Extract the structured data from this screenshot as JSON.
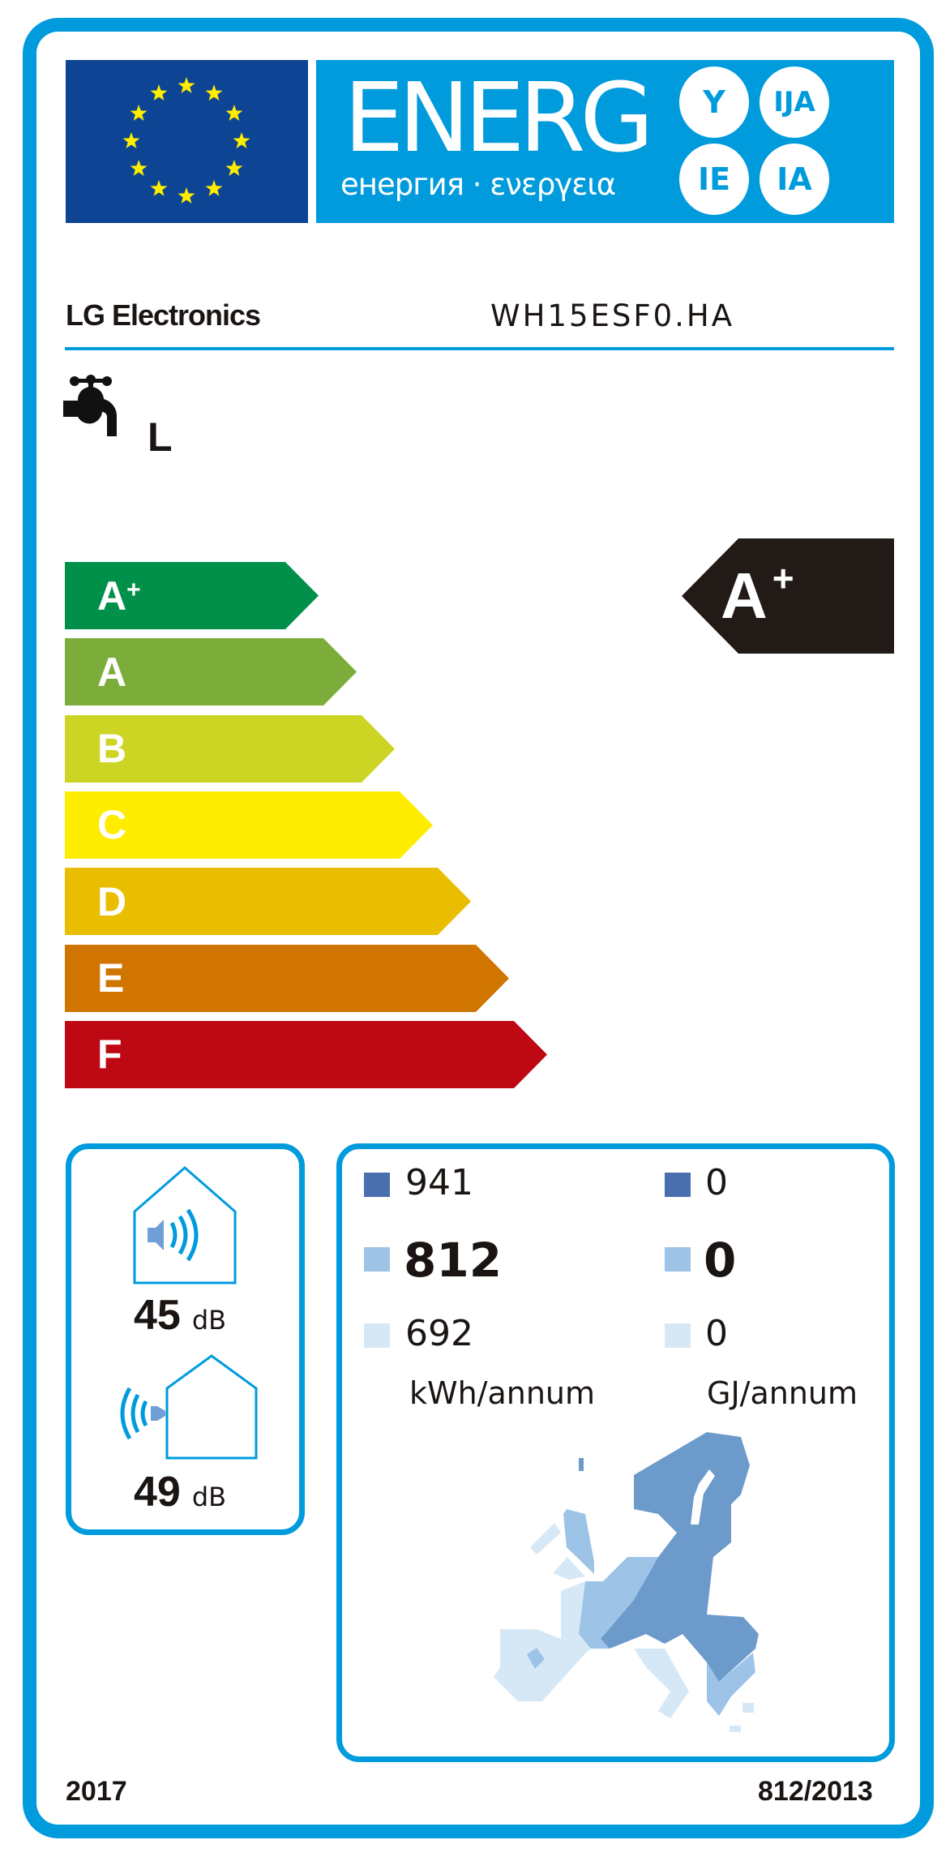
{
  "header": {
    "energy_word": "ENERG",
    "energy_subtitle": "енергия · ενεργεια",
    "language_suffixes": [
      "Y",
      "IJA",
      "IE",
      "IA"
    ],
    "flag_icon": "eu-flag-stars"
  },
  "supplier": "LG Electronics",
  "model": "WH15ESF0.HA",
  "load_profile": {
    "icon": "water-tap-icon",
    "value": "L"
  },
  "scale": [
    {
      "class": "A",
      "sup": "+",
      "color": "#00904a"
    },
    {
      "class": "A",
      "sup": "",
      "color": "#7cad3a"
    },
    {
      "class": "B",
      "sup": "",
      "color": "#ccd424"
    },
    {
      "class": "C",
      "sup": "",
      "color": "#ffed00"
    },
    {
      "class": "D",
      "sup": "",
      "color": "#e9bd00"
    },
    {
      "class": "E",
      "sup": "",
      "color": "#cf7500"
    },
    {
      "class": "F",
      "sup": "",
      "color": "#be0813"
    }
  ],
  "rating": {
    "class": "A",
    "sup": "+",
    "color": "#211a17"
  },
  "noise": {
    "indoor_value": "45",
    "outdoor_value": "49",
    "unit": "dB"
  },
  "consumption": {
    "kwh": [
      "941",
      "812",
      "692"
    ],
    "gj": [
      "0",
      "0",
      "0"
    ],
    "kwh_unit": "kWh/annum",
    "gj_unit": "GJ/annum",
    "zone_colors": [
      "#4a6fae",
      "#9dc3e6",
      "#d6e8f6"
    ]
  },
  "footer": {
    "year": "2017",
    "regulation": "812/2013"
  },
  "brand_color": "#009bdc"
}
